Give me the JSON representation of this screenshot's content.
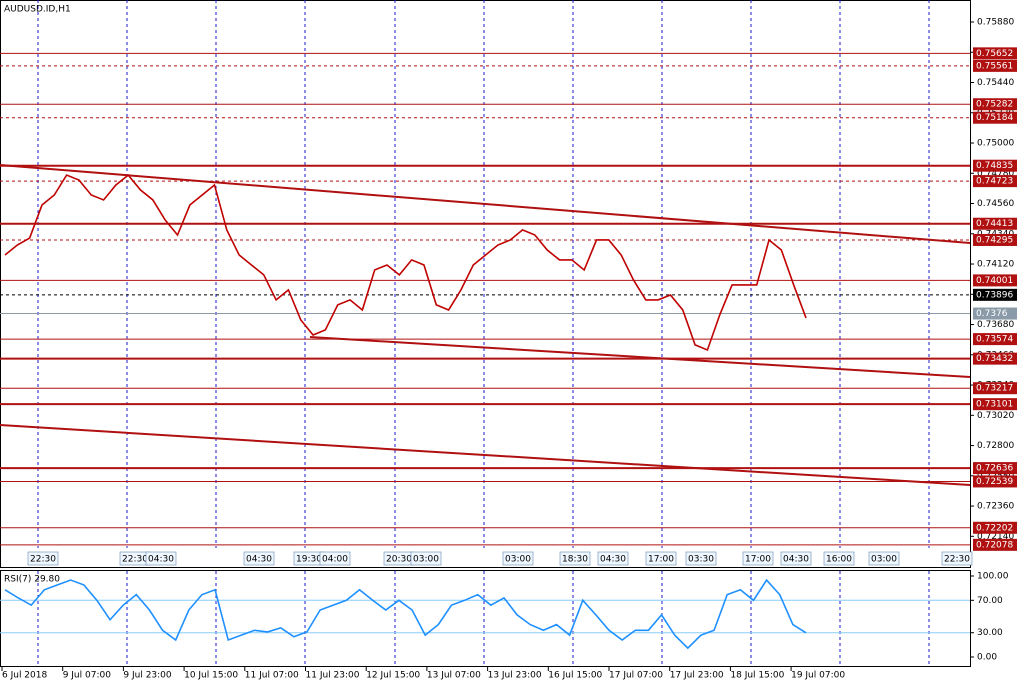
{
  "chart_data": [
    {
      "type": "line",
      "title": "AUDUSD.ID,H1",
      "color": "#c00000",
      "ylim": [
        0.72055,
        0.7604
      ],
      "yticks": [
        {
          "value": 0.7588,
          "label": "0.75880"
        },
        {
          "value": 0.7566,
          "label": "0.75660"
        },
        {
          "value": 0.7544,
          "label": "0.75440"
        },
        {
          "value": 0.7522,
          "label": "0.75220"
        },
        {
          "value": 0.75,
          "label": "0.75000"
        },
        {
          "value": 0.7478,
          "label": "0.74780"
        },
        {
          "value": 0.7456,
          "label": "0.74560"
        },
        {
          "value": 0.7434,
          "label": "0.74340"
        },
        {
          "value": 0.7412,
          "label": "0.74120"
        },
        {
          "value": 0.739,
          "label": "0.73900"
        },
        {
          "value": 0.7368,
          "label": "0.73680"
        },
        {
          "value": 0.7346,
          "label": "0.73460"
        },
        {
          "value": 0.7324,
          "label": "0.73240"
        },
        {
          "value": 0.7302,
          "label": "0.73020"
        },
        {
          "value": 0.728,
          "label": "0.72800"
        },
        {
          "value": 0.7258,
          "label": "0.72580"
        },
        {
          "value": 0.7236,
          "label": "0.72360"
        },
        {
          "value": 0.7214,
          "label": "0.72140"
        }
      ],
      "levels": [
        {
          "value": 0.75652,
          "style": "thin",
          "color": "#b01010"
        },
        {
          "value": 0.75561,
          "style": "dashed",
          "color": "#b01010"
        },
        {
          "value": 0.75282,
          "style": "thin",
          "color": "#b01010"
        },
        {
          "value": 0.75184,
          "style": "dashed",
          "color": "#b01010"
        },
        {
          "value": 0.74835,
          "style": "thick",
          "color": "#b01010"
        },
        {
          "value": 0.74723,
          "style": "dashed",
          "color": "#b01010"
        },
        {
          "value": 0.74413,
          "style": "thick",
          "color": "#b01010"
        },
        {
          "value": 0.74295,
          "style": "dashed",
          "color": "#b01010"
        },
        {
          "value": 0.74001,
          "style": "thin",
          "color": "#b01010"
        },
        {
          "value": 0.73896,
          "style": "dashed",
          "color": "#000000"
        },
        {
          "value": 0.7376,
          "style": "thin",
          "color": "#8a9aa8"
        },
        {
          "value": 0.73574,
          "style": "thin",
          "color": "#b01010"
        },
        {
          "value": 0.73432,
          "style": "thick",
          "color": "#b01010"
        },
        {
          "value": 0.73217,
          "style": "thin",
          "color": "#b01010"
        },
        {
          "value": 0.73101,
          "style": "thick",
          "color": "#b01010"
        },
        {
          "value": 0.72636,
          "style": "thick",
          "color": "#b01010"
        },
        {
          "value": 0.72539,
          "style": "thin",
          "color": "#b01010"
        },
        {
          "value": 0.72202,
          "style": "thin",
          "color": "#b01010"
        },
        {
          "value": 0.72078,
          "style": "thin",
          "color": "#b01010"
        }
      ],
      "values": [
        0.74186,
        0.74258,
        0.74309,
        0.74549,
        0.74622,
        0.74767,
        0.74731,
        0.74622,
        0.74586,
        0.74695,
        0.74767,
        0.74658,
        0.74586,
        0.7444,
        0.74331,
        0.74549,
        0.74622,
        0.74695,
        0.74368,
        0.74186,
        0.74113,
        0.74041,
        0.73859,
        0.73932,
        0.73714,
        0.73604,
        0.73641,
        0.73823,
        0.73859,
        0.73786,
        0.74077,
        0.74113,
        0.74041,
        0.7415,
        0.74113,
        0.73823,
        0.73786,
        0.73932,
        0.74113,
        0.74186,
        0.74258,
        0.74295,
        0.74368,
        0.74331,
        0.74222,
        0.7415,
        0.7415,
        0.74077,
        0.74295,
        0.74295,
        0.74186,
        0.74004,
        0.73859,
        0.73859,
        0.73895,
        0.73786,
        0.73532,
        0.73495,
        0.7375,
        0.73968,
        0.73968,
        0.73968,
        0.74295,
        0.74222,
        0.73968,
        0.73728
      ],
      "time_markers": [
        "22:30",
        "22:30",
        "04:30",
        "04:30",
        "19:30",
        "04:00",
        "20:30",
        "03:00",
        "03:00",
        "18:30",
        "04:30",
        "17:00",
        "03:30",
        "17:00",
        "04:30",
        "16:00",
        "03:00",
        "22:30"
      ],
      "time_labels": [
        "6 Jul 2018",
        "9 Jul 07:00",
        "9 Jul 23:00",
        "10 Jul 15:00",
        "11 Jul 07:00",
        "11 Jul 23:00",
        "12 Jul 15:00",
        "13 Jul 07:00",
        "13 Jul 23:00",
        "16 Jul 15:00",
        "17 Jul 07:00",
        "17 Jul 23:00",
        "18 Jul 15:00",
        "19 Jul 07:00"
      ]
    },
    {
      "type": "line",
      "title": "RSI(7) 29.80",
      "color": "#1e90ff",
      "ylim": [
        0,
        100
      ],
      "yticks": [
        {
          "value": 100,
          "label": "100.00"
        },
        {
          "value": 70,
          "label": "70.00"
        },
        {
          "value": 30,
          "label": "30.00"
        },
        {
          "value": 0,
          "label": "0.00"
        }
      ],
      "levels": [
        {
          "value": 70,
          "style": "thin",
          "color": "#87cefa"
        },
        {
          "value": 30,
          "style": "thin",
          "color": "#87cefa"
        }
      ],
      "values": [
        83,
        73,
        64,
        83,
        89,
        95,
        89,
        70,
        46,
        64,
        77,
        58,
        33,
        21,
        58,
        77,
        83,
        21,
        27,
        33,
        31,
        36,
        25,
        31,
        58,
        64,
        70,
        83,
        70,
        58,
        70,
        58,
        27,
        40,
        64,
        70,
        77,
        64,
        73,
        52,
        40,
        33,
        40,
        27,
        70,
        52,
        33,
        21,
        33,
        33,
        52,
        27,
        11,
        27,
        33,
        77,
        83,
        70,
        95,
        77,
        40,
        29.8
      ]
    }
  ]
}
